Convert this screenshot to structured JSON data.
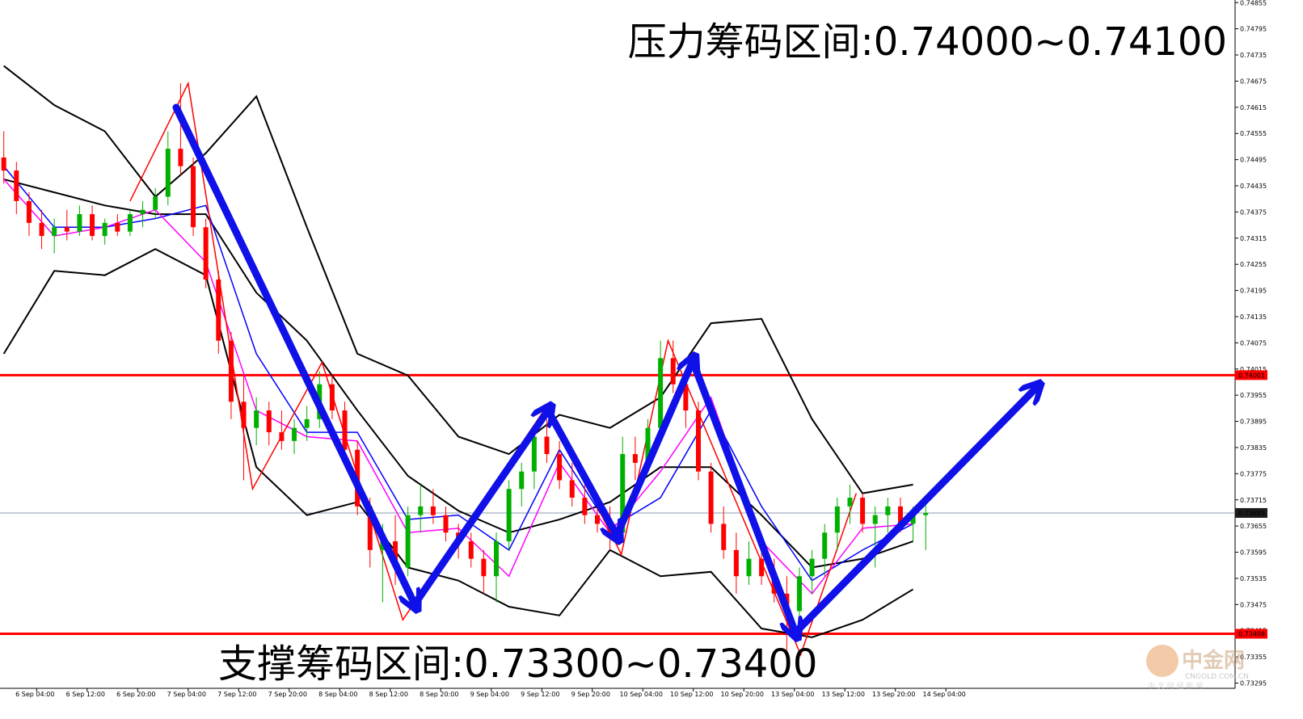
{
  "chart_data": {
    "type": "candlestick",
    "annotations": [
      "压力筹码区间:0.74000~0.74100",
      "支撑筹码区间:0.73300~0.73400"
    ],
    "watermark": {
      "title": "中金网",
      "subtitle": "CNGOLD.COM.CN",
      "tagline": "中 文 财 经 新 闻"
    },
    "up_color": "#00b000",
    "down_color": "#ff0000",
    "candles": {
      "open": [
        0.745,
        0.7447,
        0.744,
        0.7435,
        0.7432,
        0.7434,
        0.7433,
        0.7437,
        0.7432,
        0.7435,
        0.7433,
        0.7437,
        0.7438,
        0.7441,
        0.7452,
        0.7448,
        0.7434,
        0.7422,
        0.7408,
        0.7394,
        0.7388,
        0.7392,
        0.7387,
        0.7385,
        0.7388,
        0.739,
        0.7398,
        0.7392,
        0.7383,
        0.737,
        0.736,
        0.7362,
        0.7356,
        0.7368,
        0.737,
        0.7368,
        0.7364,
        0.7362,
        0.7358,
        0.7354,
        0.7362,
        0.7374,
        0.7378,
        0.7386,
        0.7382,
        0.7376,
        0.7372,
        0.7368,
        0.7366,
        0.7364,
        0.7382,
        0.738,
        0.7388,
        0.7404,
        0.7398,
        0.7392,
        0.7378,
        0.7366,
        0.736,
        0.7354,
        0.7358,
        0.7354,
        0.735,
        0.7346,
        0.7354,
        0.7358,
        0.7364,
        0.737,
        0.7372,
        0.7366,
        0.7368,
        0.737,
        0.7366,
        0.7368
      ],
      "high": [
        0.7456,
        0.7449,
        0.7442,
        0.7438,
        0.7436,
        0.7438,
        0.7439,
        0.7439,
        0.7436,
        0.7437,
        0.7438,
        0.744,
        0.7443,
        0.7456,
        0.7467,
        0.745,
        0.7436,
        0.7424,
        0.741,
        0.74,
        0.7395,
        0.7394,
        0.7392,
        0.739,
        0.7393,
        0.7401,
        0.74,
        0.7394,
        0.7385,
        0.7372,
        0.7366,
        0.7368,
        0.737,
        0.7375,
        0.7374,
        0.737,
        0.7366,
        0.7364,
        0.736,
        0.7364,
        0.7376,
        0.738,
        0.7388,
        0.739,
        0.7385,
        0.738,
        0.7375,
        0.7372,
        0.737,
        0.7386,
        0.7386,
        0.739,
        0.7408,
        0.7408,
        0.7401,
        0.7394,
        0.738,
        0.737,
        0.7364,
        0.7362,
        0.7362,
        0.7358,
        0.7354,
        0.7356,
        0.736,
        0.7366,
        0.7372,
        0.7375,
        0.7373,
        0.737,
        0.7372,
        0.7372,
        0.737,
        0.7372
      ],
      "low": [
        0.7444,
        0.7437,
        0.7432,
        0.7429,
        0.7428,
        0.7431,
        0.7432,
        0.7431,
        0.743,
        0.7432,
        0.7432,
        0.7434,
        0.7436,
        0.7439,
        0.7446,
        0.7432,
        0.742,
        0.7405,
        0.739,
        0.7376,
        0.7384,
        0.7384,
        0.7383,
        0.7382,
        0.7385,
        0.7388,
        0.739,
        0.738,
        0.7368,
        0.7356,
        0.7348,
        0.7352,
        0.7354,
        0.7364,
        0.7366,
        0.7362,
        0.7358,
        0.7356,
        0.735,
        0.7348,
        0.736,
        0.737,
        0.7374,
        0.738,
        0.7374,
        0.737,
        0.7366,
        0.7364,
        0.736,
        0.7362,
        0.7376,
        0.7378,
        0.7386,
        0.7396,
        0.7388,
        0.7376,
        0.7364,
        0.7358,
        0.735,
        0.7352,
        0.7352,
        0.7348,
        0.7336,
        0.7344,
        0.735,
        0.7354,
        0.736,
        0.7366,
        0.7364,
        0.7356,
        0.7364,
        0.7364,
        0.7362,
        0.736
      ],
      "close": [
        0.7447,
        0.744,
        0.7435,
        0.7432,
        0.7434,
        0.7433,
        0.7437,
        0.7432,
        0.7435,
        0.7433,
        0.7437,
        0.7438,
        0.7441,
        0.7452,
        0.7448,
        0.7434,
        0.7422,
        0.7408,
        0.7394,
        0.7388,
        0.7392,
        0.7387,
        0.7385,
        0.7388,
        0.739,
        0.7398,
        0.7392,
        0.7383,
        0.737,
        0.736,
        0.7362,
        0.7356,
        0.7368,
        0.737,
        0.7368,
        0.7364,
        0.7362,
        0.7358,
        0.7354,
        0.7362,
        0.7374,
        0.7378,
        0.7386,
        0.7382,
        0.7376,
        0.7372,
        0.7368,
        0.7366,
        0.7364,
        0.7382,
        0.738,
        0.7388,
        0.7404,
        0.7398,
        0.7392,
        0.7378,
        0.7366,
        0.736,
        0.7354,
        0.7358,
        0.7354,
        0.735,
        0.7346,
        0.7354,
        0.7358,
        0.7364,
        0.737,
        0.7372,
        0.7366,
        0.7368,
        0.737,
        0.7366,
        0.7368,
        0.73685
      ]
    },
    "series": [
      {
        "color": "#000000",
        "x": [
          0,
          4,
          8,
          12,
          16,
          20,
          24,
          28,
          32,
          36,
          40,
          44,
          48,
          52,
          56,
          60,
          64,
          68,
          72
        ],
        "values": [
          0.7471,
          0.7462,
          0.7456,
          0.7441,
          0.7451,
          0.7464,
          0.7434,
          0.7405,
          0.74,
          0.7386,
          0.7382,
          0.7391,
          0.7388,
          0.7395,
          0.7412,
          0.7413,
          0.739,
          0.7373,
          0.7375
        ]
      },
      {
        "color": "#000000",
        "x": [
          0,
          4,
          8,
          12,
          16,
          20,
          24,
          28,
          32,
          36,
          40,
          44,
          48,
          52,
          56,
          60,
          64,
          68,
          72
        ],
        "values": [
          0.7445,
          0.7442,
          0.7439,
          0.7437,
          0.7437,
          0.7419,
          0.7408,
          0.7392,
          0.7377,
          0.7369,
          0.7364,
          0.7367,
          0.7371,
          0.7379,
          0.7379,
          0.7368,
          0.7356,
          0.7358,
          0.7362
        ]
      },
      {
        "color": "#000000",
        "x": [
          0,
          4,
          8,
          12,
          16,
          20,
          24,
          28,
          32,
          36,
          40,
          44,
          48,
          52,
          56,
          60,
          64,
          68,
          72
        ],
        "values": [
          0.7405,
          0.7424,
          0.7423,
          0.7429,
          0.7423,
          0.7379,
          0.7368,
          0.7371,
          0.7356,
          0.7353,
          0.7347,
          0.7345,
          0.736,
          0.7354,
          0.7355,
          0.7342,
          0.734,
          0.7344,
          0.7351
        ]
      },
      {
        "color": "#0000ff",
        "x": [
          0,
          4,
          8,
          12,
          16,
          20,
          24,
          28,
          32,
          36,
          40,
          44,
          48,
          52,
          56,
          60,
          64,
          68,
          72
        ],
        "values": [
          0.7448,
          0.7434,
          0.7434,
          0.7436,
          0.7439,
          0.7405,
          0.7387,
          0.7387,
          0.7367,
          0.7368,
          0.736,
          0.7383,
          0.7365,
          0.7372,
          0.7392,
          0.737,
          0.7353,
          0.736,
          0.7366
        ]
      },
      {
        "color": "#ff00ff",
        "x": [
          0,
          4,
          8,
          12,
          16,
          20,
          24,
          28,
          32,
          36,
          40,
          44,
          48,
          52,
          56,
          60,
          64,
          68,
          72
        ],
        "values": [
          0.7445,
          0.7432,
          0.7434,
          0.7438,
          0.7426,
          0.7392,
          0.7386,
          0.7385,
          0.7364,
          0.7365,
          0.7354,
          0.738,
          0.7364,
          0.7378,
          0.7395,
          0.7362,
          0.735,
          0.7365,
          0.7366
        ]
      },
      {
        "color": "#ff0000",
        "x": [
          10,
          14.6,
          19.7,
          25.2,
          31.6,
          43,
          48.9,
          52.6,
          63.1,
          67.5
        ],
        "values": [
          0.744,
          0.7467,
          0.7374,
          0.7403,
          0.7344,
          0.7393,
          0.7359,
          0.7408,
          0.7336,
          0.7373
        ]
      }
    ],
    "hlines": [
      {
        "value": 0.74001,
        "color": "#ff0000"
      },
      {
        "value": 0.73408,
        "color": "#ff0000"
      },
      {
        "value": 0.73685,
        "color": "#8a9bb0"
      }
    ],
    "xlim": [
      -0.3,
      97.5
    ],
    "ylim": [
      0.73283,
      0.74861
    ],
    "yticks": [
      0.74855,
      0.74795,
      0.74735,
      0.74675,
      0.74615,
      0.74555,
      0.74495,
      0.74435,
      0.74375,
      0.74315,
      0.74255,
      0.74195,
      0.74135,
      0.74075,
      0.74015,
      0.73955,
      0.73895,
      0.73835,
      0.73775,
      0.73715,
      0.73655,
      0.73595,
      0.73535,
      0.73475,
      0.73415,
      0.73355,
      0.73295
    ],
    "xticks": [
      {
        "value": 2.6,
        "label": "6 Sep 04:00"
      },
      {
        "value": 6.6,
        "label": "6 Sep 12:00"
      },
      {
        "value": 10.6,
        "label": "6 Sep 20:00"
      },
      {
        "value": 14.6,
        "label": "7 Sep 04:00"
      },
      {
        "value": 18.6,
        "label": "7 Sep 12:00"
      },
      {
        "value": 22.6,
        "label": "7 Sep 20:00"
      },
      {
        "value": 26.6,
        "label": "8 Sep 04:00"
      },
      {
        "value": 30.6,
        "label": "8 Sep 12:00"
      },
      {
        "value": 34.6,
        "label": "8 Sep 20:00"
      },
      {
        "value": 38.6,
        "label": "9 Sep 04:00"
      },
      {
        "value": 42.6,
        "label": "9 Sep 12:00"
      },
      {
        "value": 46.6,
        "label": "9 Sep 20:00"
      },
      {
        "value": 50.6,
        "label": "10 Sep 04:00"
      },
      {
        "value": 54.6,
        "label": "10 Sep 12:00"
      },
      {
        "value": 58.6,
        "label": "10 Sep 20:00"
      },
      {
        "value": 62.6,
        "label": "13 Sep 04:00"
      },
      {
        "value": 66.6,
        "label": "13 Sep 12:00"
      },
      {
        "value": 70.6,
        "label": "13 Sep 20:00"
      },
      {
        "value": 74.6,
        "label": "14 Sep 04:00"
      }
    ]
  }
}
